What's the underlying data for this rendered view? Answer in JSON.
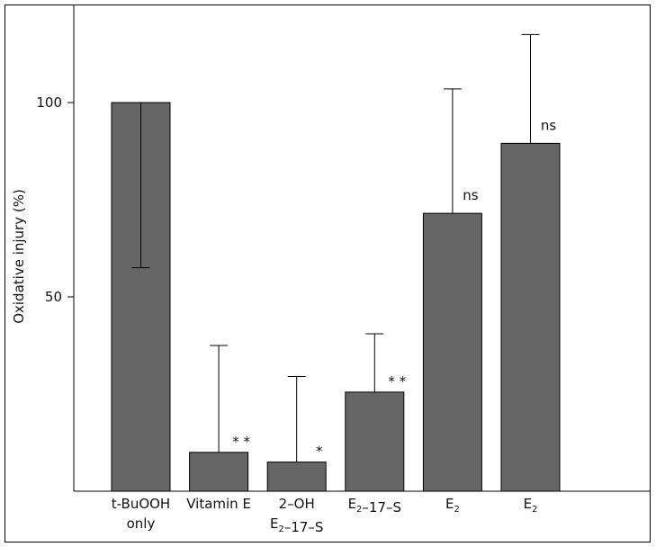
{
  "chart_data": {
    "type": "bar",
    "title": "",
    "xlabel": "",
    "ylabel": "Oxidative injury (%)",
    "ylim": [
      0,
      125
    ],
    "yticks": [
      50,
      100
    ],
    "grid": false,
    "legend": "none",
    "bar_color": "#666666",
    "categories": [
      {
        "lines": [
          [
            {
              "t": "t-BuOOH"
            }
          ],
          [
            {
              "t": "only"
            }
          ]
        ]
      },
      {
        "lines": [
          [
            {
              "t": "Vitamin E"
            }
          ]
        ]
      },
      {
        "lines": [
          [
            {
              "t": "2–OH"
            }
          ],
          [
            {
              "t": "E"
            },
            {
              "t": "2",
              "sub": true
            },
            {
              "t": "–17–S"
            }
          ]
        ]
      },
      {
        "lines": [
          [
            {
              "t": "E"
            },
            {
              "t": "2",
              "sub": true
            },
            {
              "t": "–17–S"
            }
          ]
        ]
      },
      {
        "lines": [
          [
            {
              "t": "E"
            },
            {
              "t": "2",
              "sub": true
            }
          ]
        ]
      },
      {
        "lines": [
          [
            {
              "t": "E"
            },
            {
              "t": "2",
              "sub": true
            }
          ]
        ]
      }
    ],
    "values": [
      100,
      10,
      7.5,
      25.5,
      71.5,
      89.5
    ],
    "error_upper": [
      100,
      37.5,
      29.5,
      40.5,
      103.5,
      117.5
    ],
    "error_lower": [
      57.5,
      null,
      null,
      null,
      null,
      null
    ],
    "annotations": [
      "",
      "* *",
      "*",
      "* *",
      "ns",
      "ns"
    ]
  }
}
